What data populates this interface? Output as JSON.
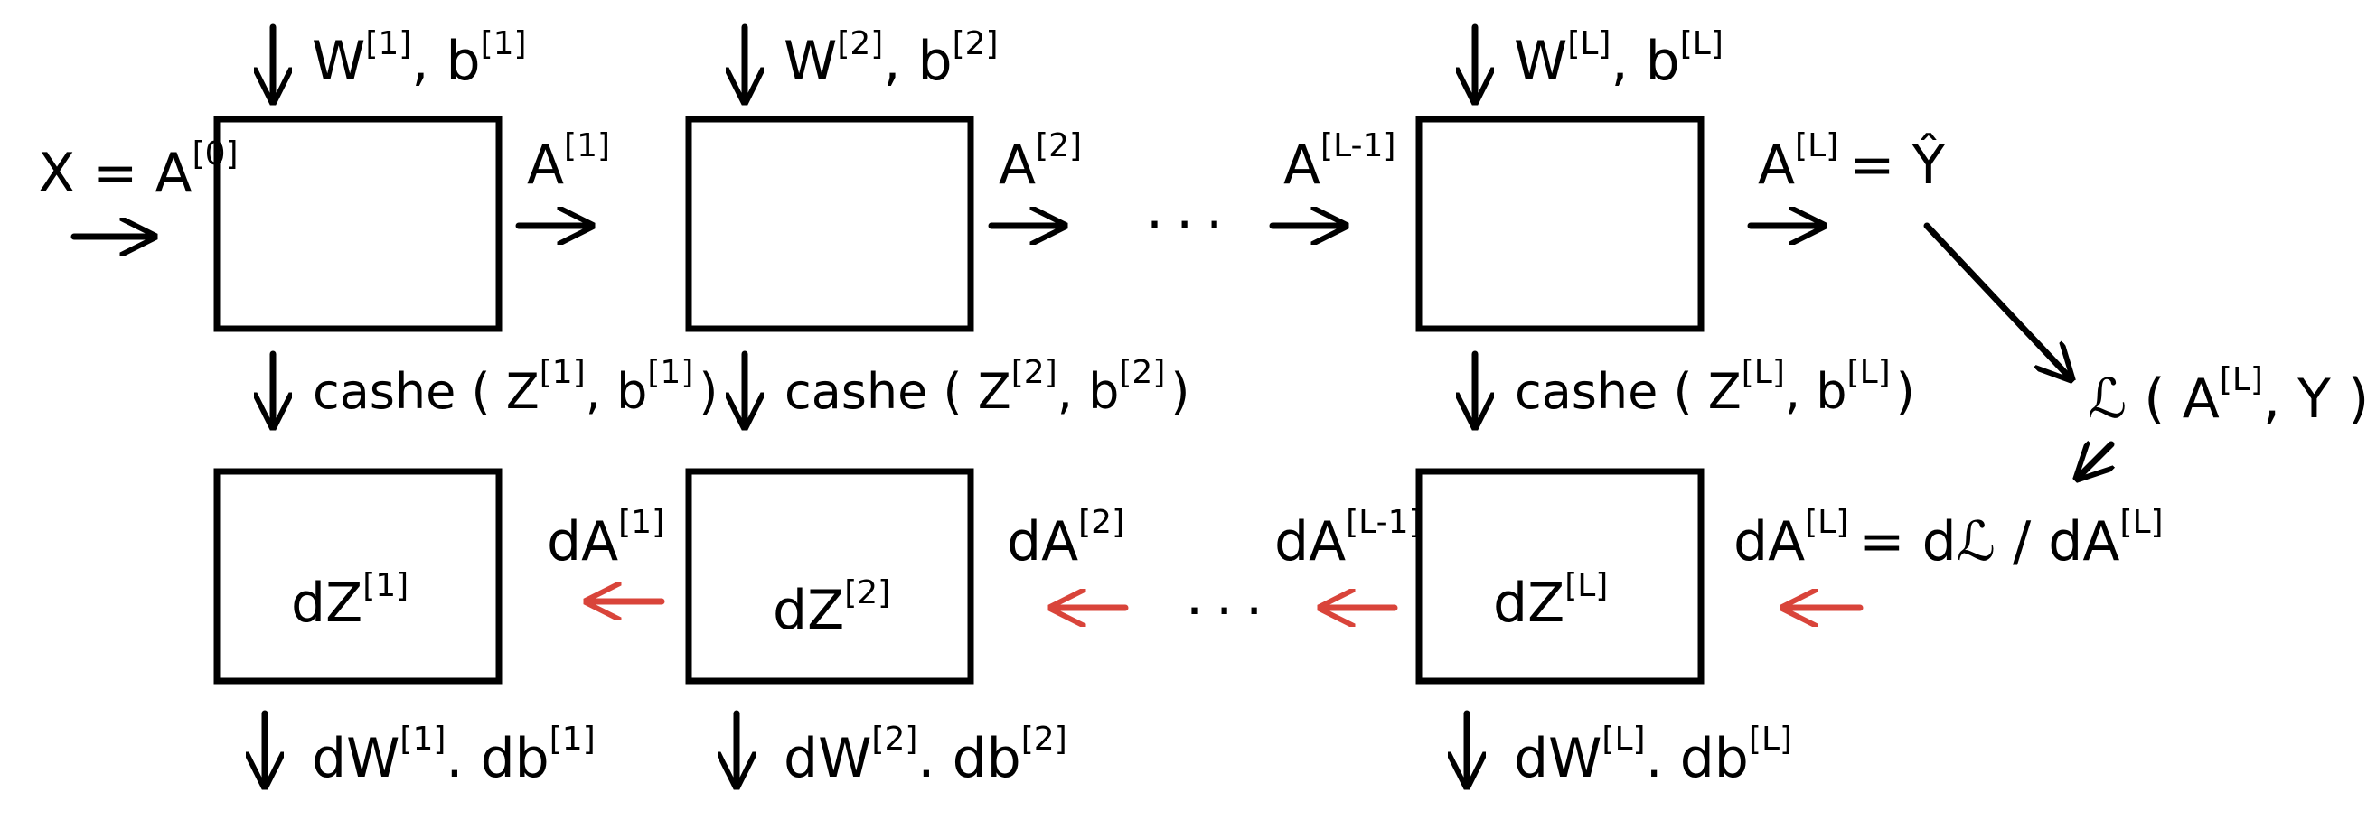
{
  "forward": {
    "input_label": "X = A",
    "input_sup": "[0]",
    "layers": [
      {
        "param_main": "W",
        "param_sup": "[1]",
        "param_sep": ", b",
        "param_sup2": "[1]",
        "out_main": "A",
        "out_sup": "[1]",
        "cache_main": "cashe ( Z",
        "cache_sup": "[1]",
        "cache_mid": ", b",
        "cache_sup2": "[1]",
        "cache_end": ")"
      },
      {
        "param_main": "W",
        "param_sup": "[2]",
        "param_sep": ", b",
        "param_sup2": "[2]",
        "out_main": "A",
        "out_sup": "[2]",
        "cache_main": "cashe ( Z",
        "cache_sup": "[2]",
        "cache_mid": ", b",
        "cache_sup2": "[2]",
        "cache_end": ")"
      },
      {
        "param_main": "W",
        "param_sup": "[L]",
        "param_sep": ", b",
        "param_sup2": "[L]",
        "in_main": "A",
        "in_sup": "[L-1]",
        "out_main": "A",
        "out_sup": "[L]",
        "out_eq": "= Ŷ",
        "cache_main": "cashe ( Z",
        "cache_sup": "[L]",
        "cache_mid": ", b",
        "cache_sup2": "[L]",
        "cache_end": ")"
      }
    ],
    "ellipsis": "...",
    "loss": {
      "main": "ℒ ( A",
      "sup": "[L]",
      "end": ", Y )"
    }
  },
  "backward": {
    "dA_last": {
      "main": "dA",
      "sup": "[L]",
      "eq": "= dℒ / dA",
      "eq_sup": "[L]"
    },
    "layers": [
      {
        "dz_main": "dZ",
        "dz_sup": "[1]",
        "da_main": "dA",
        "da_sup": "[1]",
        "grad_main": "dW",
        "grad_sup": "[1]",
        "grad_sep": ". db",
        "grad_sup2": "[1]"
      },
      {
        "dz_main": "dZ",
        "dz_sup": "[2]",
        "da_main": "dA",
        "da_sup": "[2]",
        "grad_main": "dW",
        "grad_sup": "[2]",
        "grad_sep": ". db",
        "grad_sup2": "[2]"
      },
      {
        "dz_main": "dZ",
        "dz_sup": "[L]",
        "da_main": "dA",
        "da_sup": "[L-1]",
        "grad_main": "dW",
        "grad_sup": "[L]",
        "grad_sep": ". db",
        "grad_sup2": "[L]"
      }
    ],
    "ellipsis": "..."
  },
  "colors": {
    "stroke": "#000000",
    "backward_arrow": "#d9443a"
  }
}
